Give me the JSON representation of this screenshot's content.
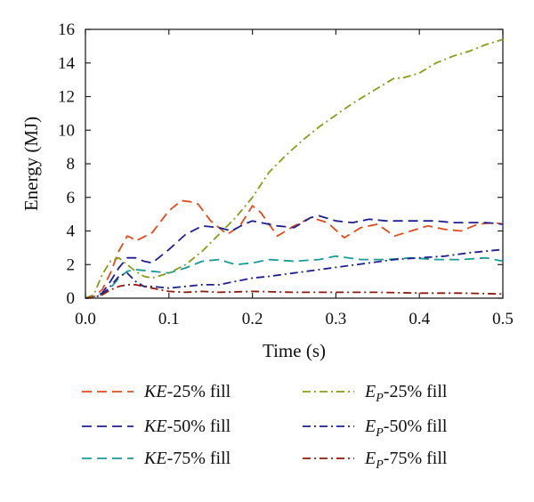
{
  "chart_data": {
    "type": "line",
    "title": "",
    "xlabel": "Time (s)",
    "ylabel": "Energy (MJ)",
    "xlim": [
      0.0,
      0.5
    ],
    "ylim": [
      0,
      16
    ],
    "xticks": [
      "0.0",
      "0.1",
      "0.2",
      "0.3",
      "0.4",
      "0.5"
    ],
    "yticks": [
      "0",
      "2",
      "4",
      "6",
      "8",
      "10",
      "12",
      "14",
      "16"
    ],
    "grid": false,
    "legend_position": "bottom",
    "series": [
      {
        "name_main": "KE",
        "name_sub": "",
        "name_rest": "-25% fill",
        "color": "#e04a1f",
        "dash": "dashed",
        "x": [
          0.0,
          0.01,
          0.02,
          0.03,
          0.04,
          0.05,
          0.055,
          0.06,
          0.08,
          0.1,
          0.115,
          0.125,
          0.135,
          0.15,
          0.17,
          0.185,
          0.2,
          0.21,
          0.23,
          0.25,
          0.27,
          0.29,
          0.31,
          0.33,
          0.35,
          0.37,
          0.39,
          0.41,
          0.43,
          0.45,
          0.47,
          0.49,
          0.5
        ],
        "values": [
          0.0,
          0.1,
          0.5,
          1.5,
          2.8,
          3.7,
          3.6,
          3.4,
          3.9,
          5.2,
          5.8,
          5.75,
          5.6,
          4.6,
          3.8,
          4.3,
          5.5,
          5.1,
          3.7,
          4.3,
          4.8,
          4.5,
          3.6,
          4.2,
          4.4,
          3.7,
          4.0,
          4.3,
          4.1,
          4.0,
          4.4,
          4.5,
          4.4
        ]
      },
      {
        "name_main": "KE",
        "name_sub": "",
        "name_rest": "-50% fill",
        "color": "#1f1f8e",
        "dash": "dashed",
        "x": [
          0.0,
          0.01,
          0.02,
          0.03,
          0.04,
          0.05,
          0.06,
          0.07,
          0.08,
          0.1,
          0.12,
          0.14,
          0.16,
          0.175,
          0.19,
          0.2,
          0.21,
          0.23,
          0.25,
          0.27,
          0.28,
          0.3,
          0.32,
          0.34,
          0.36,
          0.38,
          0.4,
          0.42,
          0.44,
          0.46,
          0.48,
          0.5
        ],
        "values": [
          0.0,
          0.05,
          0.3,
          1.0,
          1.8,
          2.4,
          2.4,
          2.2,
          2.1,
          2.9,
          3.8,
          4.3,
          4.2,
          4.0,
          4.4,
          4.6,
          4.5,
          4.3,
          4.2,
          4.8,
          4.9,
          4.6,
          4.5,
          4.7,
          4.6,
          4.6,
          4.6,
          4.6,
          4.5,
          4.5,
          4.5,
          4.4
        ]
      },
      {
        "name_main": "KE",
        "name_sub": "",
        "name_rest": "-75% fill",
        "color": "#1a9a96",
        "dash": "dashed",
        "x": [
          0.0,
          0.01,
          0.02,
          0.03,
          0.04,
          0.05,
          0.06,
          0.08,
          0.1,
          0.12,
          0.14,
          0.16,
          0.18,
          0.2,
          0.22,
          0.25,
          0.28,
          0.3,
          0.33,
          0.36,
          0.39,
          0.42,
          0.45,
          0.48,
          0.5
        ],
        "values": [
          0.0,
          0.05,
          0.2,
          0.6,
          1.2,
          1.6,
          1.7,
          1.6,
          1.5,
          1.8,
          2.2,
          2.3,
          2.0,
          2.1,
          2.3,
          2.2,
          2.3,
          2.5,
          2.3,
          2.3,
          2.4,
          2.3,
          2.3,
          2.4,
          2.2
        ]
      },
      {
        "name_main": "E",
        "name_sub": "P",
        "name_rest": "-25% fill",
        "color": "#8a9a1c",
        "dash": "dashdot",
        "x": [
          0.0,
          0.01,
          0.02,
          0.03,
          0.04,
          0.05,
          0.06,
          0.07,
          0.08,
          0.1,
          0.12,
          0.14,
          0.16,
          0.18,
          0.2,
          0.22,
          0.24,
          0.26,
          0.28,
          0.3,
          0.32,
          0.34,
          0.36,
          0.37,
          0.38,
          0.4,
          0.42,
          0.44,
          0.46,
          0.48,
          0.5
        ],
        "values": [
          0.0,
          0.2,
          1.4,
          2.2,
          2.4,
          2.0,
          1.6,
          1.3,
          1.2,
          1.5,
          2.0,
          2.8,
          3.8,
          4.8,
          6.0,
          7.5,
          8.5,
          9.4,
          10.2,
          10.9,
          11.6,
          12.2,
          12.8,
          13.1,
          13.1,
          13.4,
          14.0,
          14.4,
          14.7,
          15.1,
          15.4
        ]
      },
      {
        "name_main": "E",
        "name_sub": "P",
        "name_rest": "-50% fill",
        "color": "#1f1f8e",
        "dash": "dashdot",
        "x": [
          0.0,
          0.01,
          0.02,
          0.03,
          0.04,
          0.05,
          0.06,
          0.07,
          0.08,
          0.1,
          0.12,
          0.14,
          0.16,
          0.18,
          0.2,
          0.22,
          0.25,
          0.28,
          0.31,
          0.34,
          0.37,
          0.4,
          0.43,
          0.46,
          0.5
        ],
        "values": [
          0.0,
          0.05,
          0.2,
          0.7,
          1.3,
          1.5,
          1.0,
          0.7,
          0.7,
          0.6,
          0.7,
          0.8,
          0.8,
          1.0,
          1.2,
          1.3,
          1.5,
          1.7,
          1.9,
          2.1,
          2.3,
          2.4,
          2.5,
          2.7,
          2.9
        ]
      },
      {
        "name_main": "E",
        "name_sub": "P",
        "name_rest": "-75% fill",
        "color": "#8b1a0a",
        "dash": "dashdot",
        "x": [
          0.0,
          0.01,
          0.02,
          0.03,
          0.04,
          0.05,
          0.06,
          0.07,
          0.08,
          0.1,
          0.12,
          0.14,
          0.16,
          0.2,
          0.25,
          0.3,
          0.35,
          0.4,
          0.45,
          0.5
        ],
        "values": [
          0.0,
          0.05,
          0.2,
          0.5,
          0.7,
          0.8,
          0.8,
          0.7,
          0.6,
          0.4,
          0.35,
          0.4,
          0.35,
          0.4,
          0.35,
          0.35,
          0.35,
          0.3,
          0.3,
          0.25
        ]
      }
    ]
  }
}
